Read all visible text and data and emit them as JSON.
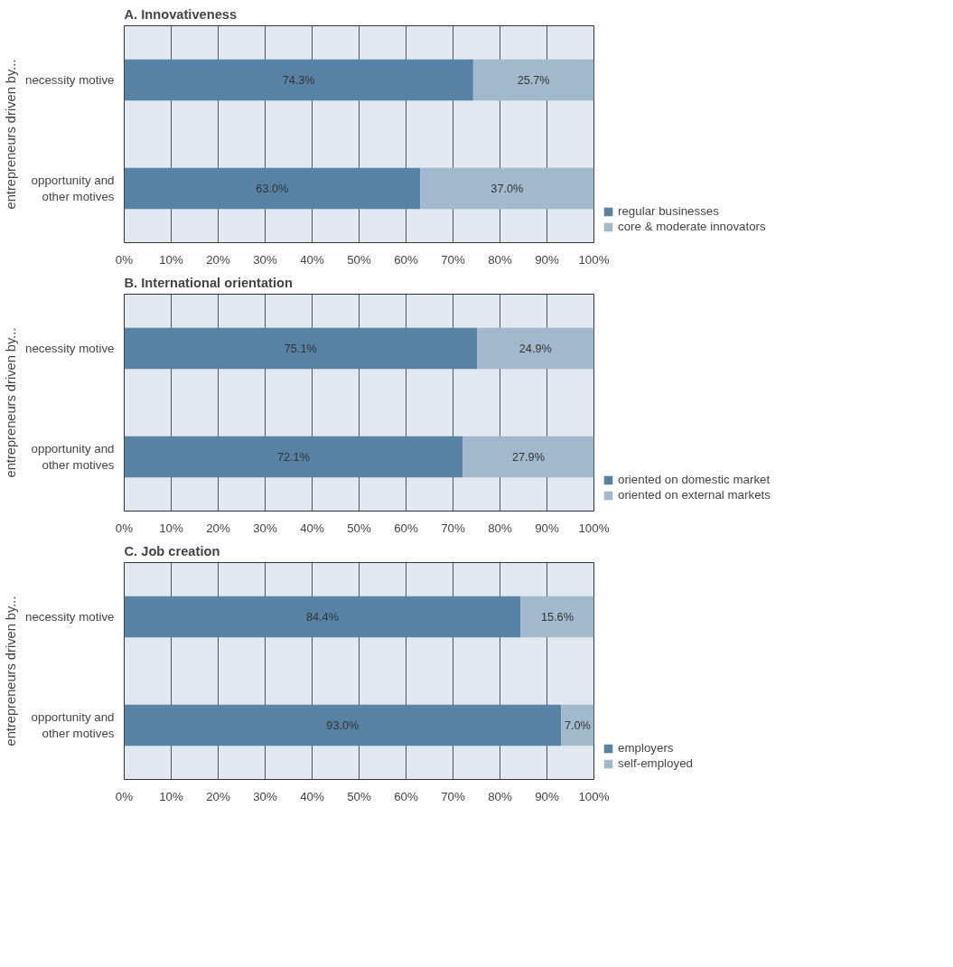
{
  "chart_data": [
    {
      "type": "bar",
      "title": "A. Innovativeness",
      "ylabel": "entrepreneurs driven by...",
      "orientation": "horizontal",
      "stacked": true,
      "categories": [
        "necessity motive",
        "opportunity and\nother motives"
      ],
      "series": [
        {
          "name": "regular businesses",
          "color": "#5882a3",
          "values": [
            74.3,
            63.0
          ],
          "value_labels": [
            "74.3%",
            "63.0%"
          ]
        },
        {
          "name": "core & moderate innovators",
          "color": "#a2b8cc",
          "values": [
            25.7,
            37.0
          ],
          "value_labels": [
            "25.7%",
            "37.0%"
          ]
        }
      ],
      "xlim": [
        0,
        100
      ],
      "xticks": [
        {
          "value": 0,
          "label": "0%"
        },
        {
          "value": 10,
          "label": "10%"
        },
        {
          "value": 20,
          "label": "20%"
        },
        {
          "value": 30,
          "label": "30%"
        },
        {
          "value": 40,
          "label": "40%"
        },
        {
          "value": 50,
          "label": "50%"
        },
        {
          "value": 60,
          "label": "60%"
        },
        {
          "value": 70,
          "label": "70%"
        },
        {
          "value": 80,
          "label": "80%"
        },
        {
          "value": 90,
          "label": "90%"
        },
        {
          "value": 100,
          "label": "100%"
        }
      ],
      "grid": "x",
      "legend": "bottom right"
    },
    {
      "type": "bar",
      "title": "B. International orientation",
      "ylabel": "entrepreneurs driven by...",
      "orientation": "horizontal",
      "stacked": true,
      "categories": [
        "necessity motive",
        "opportunity and\nother motives"
      ],
      "series": [
        {
          "name": "oriented on domestic market",
          "color": "#5882a3",
          "values": [
            75.1,
            72.1
          ],
          "value_labels": [
            "75.1%",
            "72.1%"
          ]
        },
        {
          "name": "oriented on external markets",
          "color": "#a2b8cc",
          "values": [
            24.9,
            27.9
          ],
          "value_labels": [
            "24.9%",
            "27.9%"
          ]
        }
      ],
      "xlim": [
        0,
        100
      ],
      "xticks": [
        {
          "value": 0,
          "label": "0%"
        },
        {
          "value": 10,
          "label": "10%"
        },
        {
          "value": 20,
          "label": "20%"
        },
        {
          "value": 30,
          "label": "30%"
        },
        {
          "value": 40,
          "label": "40%"
        },
        {
          "value": 50,
          "label": "50%"
        },
        {
          "value": 60,
          "label": "60%"
        },
        {
          "value": 70,
          "label": "70%"
        },
        {
          "value": 80,
          "label": "80%"
        },
        {
          "value": 90,
          "label": "90%"
        },
        {
          "value": 100,
          "label": "100%"
        }
      ],
      "grid": "x",
      "legend": "bottom right"
    },
    {
      "type": "bar",
      "title": "C. Job creation",
      "ylabel": "entrepreneurs driven by...",
      "orientation": "horizontal",
      "stacked": true,
      "categories": [
        "necessity motive",
        "opportunity and\nother motives"
      ],
      "series": [
        {
          "name": "employers",
          "color": "#5882a3",
          "values": [
            84.4,
            93.0
          ],
          "value_labels": [
            "84.4%",
            "93.0%"
          ]
        },
        {
          "name": "self-employed",
          "color": "#a2b8cc",
          "values": [
            15.6,
            7.0
          ],
          "value_labels": [
            "15.6%",
            "7.0%"
          ]
        }
      ],
      "xlim": [
        0,
        100
      ],
      "xticks": [
        {
          "value": 0,
          "label": "0%"
        },
        {
          "value": 10,
          "label": "10%"
        },
        {
          "value": 20,
          "label": "20%"
        },
        {
          "value": 30,
          "label": "30%"
        },
        {
          "value": 40,
          "label": "40%"
        },
        {
          "value": 50,
          "label": "50%"
        },
        {
          "value": 60,
          "label": "60%"
        },
        {
          "value": 70,
          "label": "70%"
        },
        {
          "value": 80,
          "label": "80%"
        },
        {
          "value": 90,
          "label": "90%"
        },
        {
          "value": 100,
          "label": "100%"
        }
      ],
      "grid": "x",
      "legend": "bottom right"
    }
  ]
}
